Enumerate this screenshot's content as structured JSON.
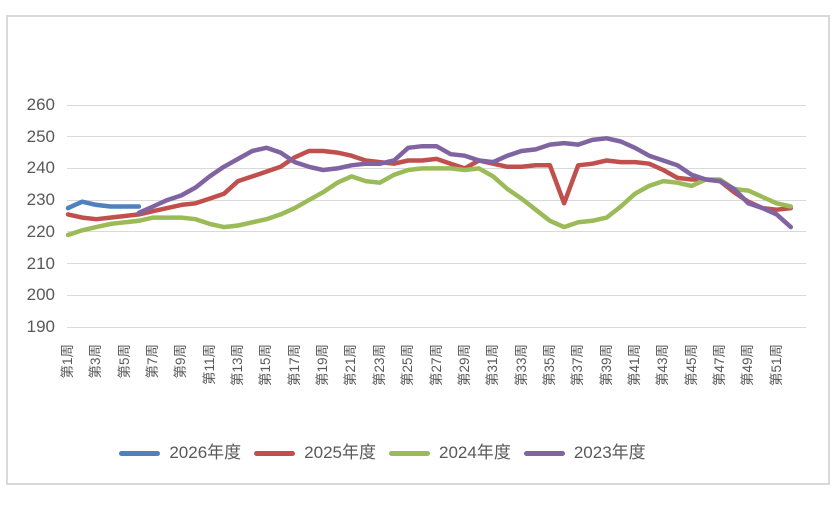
{
  "chart": {
    "title": "",
    "y_axis_tick_labels": [
      "260",
      "250",
      "240",
      "230",
      "220",
      "210",
      "200",
      "190"
    ],
    "x_axis_tick_labels": [
      "第1周",
      "第3周",
      "第5周",
      "第7周",
      "第9周",
      "第11周",
      "第13周",
      "第15周",
      "第17周",
      "第19周",
      "第21周",
      "第23周",
      "第25周",
      "第27周",
      "第29周",
      "第31周",
      "第33周",
      "第35周",
      "第37周",
      "第39周",
      "第41周",
      "第43周",
      "第45周",
      "第47周",
      "第49周",
      "第51周"
    ],
    "colors": {
      "grid": "#d9d9d9",
      "axis_text": "#595959",
      "series_blue": "#4f81bd",
      "series_red": "#c0504d",
      "series_green": "#9bbb59",
      "series_purple": "#8064a2"
    }
  },
  "chart_data": {
    "type": "line",
    "title": "",
    "xlabel": "",
    "ylabel": "",
    "ylim": [
      190,
      260
    ],
    "y_ticks": [
      260,
      250,
      240,
      230,
      220,
      210,
      200,
      190
    ],
    "grid": "horizontal",
    "legend_position": "bottom",
    "n_points": 52,
    "x_tick_labels": [
      "第1周",
      "第3周",
      "第5周",
      "第7周",
      "第9周",
      "第11周",
      "第13周",
      "第15周",
      "第17周",
      "第19周",
      "第21周",
      "第23周",
      "第25周",
      "第27周",
      "第29周",
      "第31周",
      "第33周",
      "第35周",
      "第37周",
      "第39周",
      "第41周",
      "第43周",
      "第45周",
      "第47周",
      "第49周",
      "第51周"
    ],
    "series": [
      {
        "name": "2026年度",
        "color": "#4f81bd",
        "values": [
          227.5,
          229.5,
          228.5,
          228,
          228,
          228,
          null,
          null,
          null,
          null,
          null,
          null,
          null,
          null,
          null,
          null,
          null,
          null,
          null,
          null,
          null,
          null,
          null,
          null,
          null,
          null,
          null,
          null,
          null,
          null,
          null,
          null,
          null,
          null,
          null,
          null,
          null,
          null,
          null,
          null,
          null,
          null,
          null,
          null,
          null,
          null,
          null,
          null,
          null,
          null,
          null,
          null
        ]
      },
      {
        "name": "2025年度",
        "color": "#c0504d",
        "values": [
          225.5,
          224.5,
          224,
          224.5,
          225,
          225.5,
          226.5,
          227.5,
          228.5,
          229,
          230.5,
          232,
          236,
          237.5,
          239,
          240.5,
          243.5,
          245.5,
          245.5,
          245,
          244,
          242.5,
          242,
          241.5,
          242.5,
          242.5,
          243,
          241.5,
          240,
          242.5,
          241.5,
          240.5,
          240.5,
          241,
          241,
          229,
          241,
          241.5,
          242.5,
          242,
          242,
          241.5,
          239.5,
          237,
          236.5,
          236.5,
          236,
          232.5,
          229.5,
          227.5,
          227,
          227.5
        ]
      },
      {
        "name": "2024年度",
        "color": "#9bbb59",
        "values": [
          219,
          220.5,
          221.5,
          222.5,
          223,
          223.5,
          224.5,
          224.5,
          224.5,
          224,
          222.5,
          221.5,
          222,
          223,
          224,
          225.5,
          227.5,
          230,
          232.5,
          235.5,
          237.5,
          236,
          235.5,
          238,
          239.5,
          240,
          240,
          240,
          239.5,
          240,
          237.5,
          233.5,
          230.5,
          227,
          223.5,
          221.5,
          223,
          223.5,
          224.5,
          228,
          232,
          234.5,
          236,
          235.5,
          234.5,
          236.5,
          236.5,
          233.5,
          233,
          231,
          229,
          228
        ]
      },
      {
        "name": "2023年度",
        "color": "#8064a2",
        "values": [
          null,
          null,
          null,
          null,
          null,
          226,
          228,
          230,
          231.5,
          234,
          237.5,
          240.5,
          243,
          245.5,
          246.5,
          245,
          242,
          240.5,
          239.5,
          240,
          241,
          241.5,
          241.5,
          242.5,
          246.5,
          247,
          247,
          244.5,
          244,
          242.5,
          242,
          244,
          245.5,
          246,
          247.5,
          248,
          247.5,
          249,
          249.5,
          248.5,
          246.5,
          244,
          242.5,
          241,
          238,
          236.5,
          236,
          233.5,
          229,
          227.5,
          225.5,
          221.5
        ]
      }
    ]
  }
}
